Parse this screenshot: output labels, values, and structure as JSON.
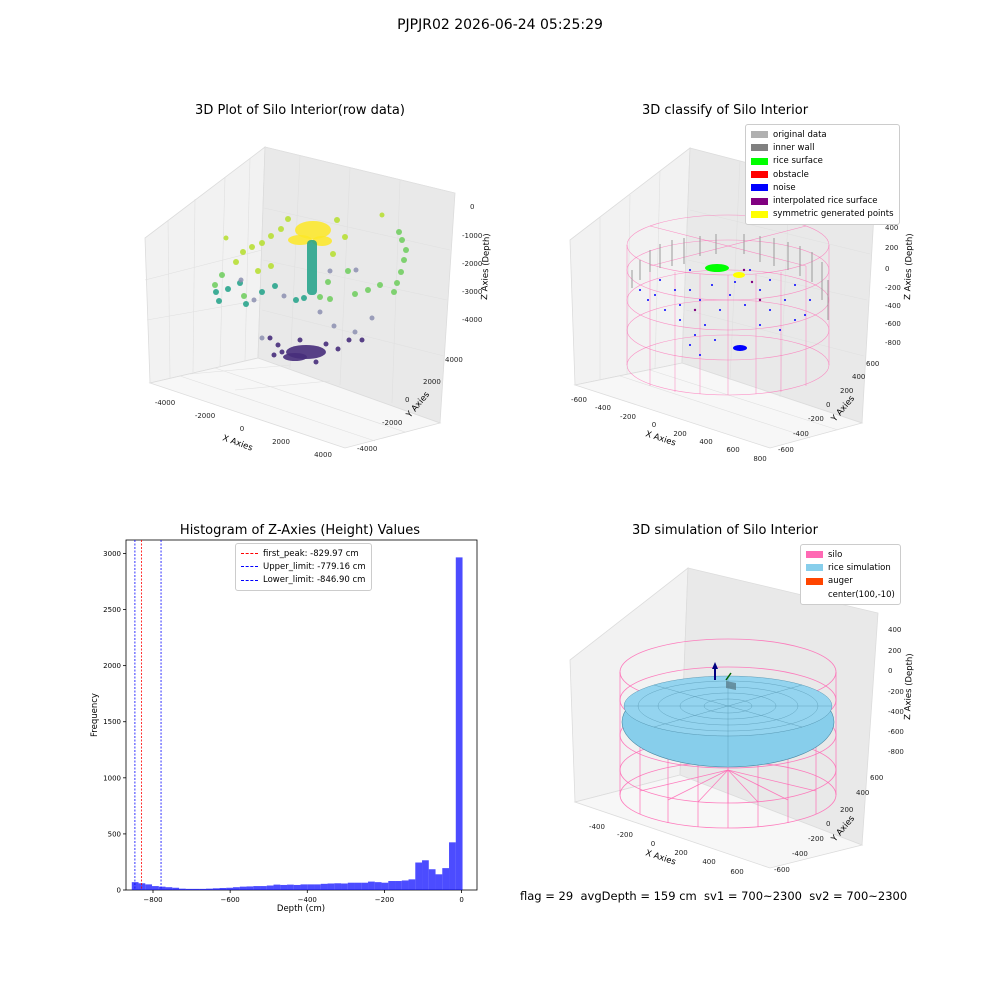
{
  "suptitle": "PJPJR02 2026-06-24 05:25:29",
  "footer": "flag = 29  avgDepth = 159 cm  sv1 = 700~2300  sv2 = 700~2300",
  "chart_data": [
    {
      "type": "scatter",
      "title": "3D Plot of Silo Interior(row data)",
      "xlabel": "X Axies",
      "ylabel": "Y Axies",
      "zlabel": "Z Axies (Depth)",
      "x_ticks": [
        "-4000",
        "-2000",
        "0",
        "2000",
        "4000"
      ],
      "y_ticks": [
        "-4000",
        "-2000",
        "0",
        "2000",
        "4000"
      ],
      "z_ticks": [
        "0",
        "-1000",
        "-2000",
        "-3000",
        "-4000"
      ],
      "colormap": "viridis"
    },
    {
      "type": "scatter",
      "title": "3D classify of Silo Interior",
      "xlabel": "X Axies",
      "ylabel": "Y Axies",
      "zlabel": "Z Axies (Depth)",
      "x_ticks": [
        "-600",
        "-400",
        "-200",
        "0",
        "200",
        "400",
        "600",
        "800"
      ],
      "y_ticks": [
        "-600",
        "-400",
        "-200",
        "0",
        "200",
        "400",
        "600"
      ],
      "z_ticks": [
        "400",
        "200",
        "0",
        "-200",
        "-400",
        "-600",
        "-800"
      ],
      "legend": [
        {
          "label": "original data",
          "color": "#b0b0b0"
        },
        {
          "label": "inner wall",
          "color": "#808080"
        },
        {
          "label": "rice surface",
          "color": "#00ff00"
        },
        {
          "label": "obstacle",
          "color": "#ff0000"
        },
        {
          "label": "noise",
          "color": "#0000ff"
        },
        {
          "label": "interpolated rice surface",
          "color": "#800080"
        },
        {
          "label": "symmetric generated points",
          "color": "#ffff00"
        }
      ]
    },
    {
      "type": "bar",
      "title": "Histogram of Z-Axies (Height) Values",
      "xlabel": "Depth (cm)",
      "ylabel": "Frequency",
      "xlim": [
        -870,
        40
      ],
      "ylim": [
        0,
        3120
      ],
      "x_ticks": [
        -800,
        -600,
        -400,
        -200,
        0
      ],
      "y_ticks": [
        0,
        500,
        1000,
        1500,
        2000,
        2500,
        3000
      ],
      "bar_color": "#0000ff",
      "bin_width": 17.5,
      "bin_starts": [
        -855,
        -837.5,
        -820,
        -802.5,
        -785,
        -767.5,
        -750,
        -732.5,
        -715,
        -697.5,
        -680,
        -662.5,
        -645,
        -627.5,
        -610,
        -592.5,
        -575,
        -557.5,
        -540,
        -522.5,
        -505,
        -487.5,
        -470,
        -452.5,
        -435,
        -417.5,
        -400,
        -382.5,
        -365,
        -347.5,
        -330,
        -312.5,
        -295,
        -277.5,
        -260,
        -242.5,
        -225,
        -207.5,
        -190,
        -172.5,
        -155,
        -137.5,
        -120,
        -102.5,
        -85,
        -67.5,
        -50,
        -32.5,
        -15
      ],
      "values": [
        70,
        60,
        50,
        35,
        30,
        25,
        20,
        12,
        10,
        10,
        10,
        12,
        15,
        18,
        20,
        25,
        30,
        32,
        35,
        35,
        40,
        48,
        45,
        48,
        45,
        50,
        50,
        50,
        55,
        58,
        60,
        58,
        65,
        65,
        65,
        75,
        70,
        65,
        80,
        80,
        85,
        95,
        245,
        265,
        185,
        140,
        195,
        425,
        2965
      ],
      "vlines": [
        {
          "label": "first_peak: -829.97 cm",
          "x": -829.97,
          "color": "#ff0000"
        },
        {
          "label": "Upper_limit: -779.16 cm",
          "x": -779.16,
          "color": "#0000ff"
        },
        {
          "label": "Lower_limit: -846.90 cm",
          "x": -846.9,
          "color": "#0000ff"
        }
      ]
    },
    {
      "type": "surface",
      "title": "3D simulation of Silo Interior",
      "xlabel": "X Axies",
      "ylabel": "Y Axies",
      "zlabel": "Z Axies (Depth)",
      "x_ticks": [
        "-400",
        "-200",
        "0",
        "200",
        "400",
        "600"
      ],
      "y_ticks": [
        "-600",
        "-400",
        "-200",
        "0",
        "200",
        "400",
        "600"
      ],
      "z_ticks": [
        "400",
        "200",
        "0",
        "-200",
        "-400",
        "-600",
        "-800"
      ],
      "legend": [
        {
          "label": "silo",
          "color": "#ff69b4"
        },
        {
          "label": "rice simulation",
          "color": "#87ceeb"
        },
        {
          "label": "auger",
          "color": "#ff4500"
        },
        {
          "label": "center(100,-10)",
          "color": ""
        }
      ]
    }
  ]
}
